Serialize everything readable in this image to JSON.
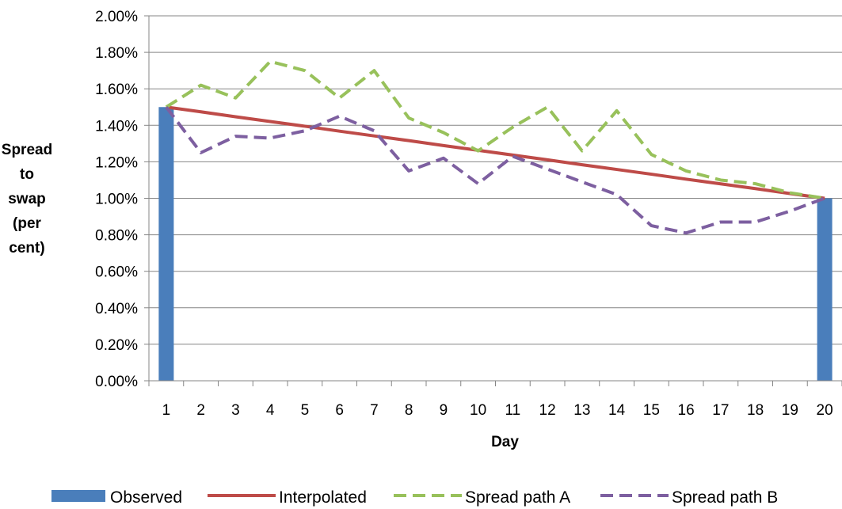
{
  "chart_data": {
    "type": "line",
    "title": "",
    "xlabel": "Day",
    "ylabel": [
      "Spread",
      "to",
      "swap",
      "(per",
      "cent)"
    ],
    "x": [
      1,
      2,
      3,
      4,
      5,
      6,
      7,
      8,
      9,
      10,
      11,
      12,
      13,
      14,
      15,
      16,
      17,
      18,
      19,
      20
    ],
    "ylim": [
      0,
      0.02
    ],
    "y_tick_labels": [
      "0.00%",
      "0.20%",
      "0.40%",
      "0.60%",
      "0.80%",
      "1.00%",
      "1.20%",
      "1.40%",
      "1.60%",
      "1.80%",
      "2.00%"
    ],
    "grid": true,
    "legend_position": "bottom",
    "series": [
      {
        "name": "Observed",
        "type": "bar",
        "color": "#4a7ebb",
        "values": [
          0.015,
          null,
          null,
          null,
          null,
          null,
          null,
          null,
          null,
          null,
          null,
          null,
          null,
          null,
          null,
          null,
          null,
          null,
          null,
          0.01
        ]
      },
      {
        "name": "Interpolated",
        "type": "line",
        "style": "solid",
        "color": "#be4b48",
        "values": [
          0.015,
          0.01474,
          0.01447,
          0.01421,
          0.01395,
          0.01368,
          0.01342,
          0.01316,
          0.01289,
          0.01263,
          0.01237,
          0.01211,
          0.01184,
          0.01158,
          0.01132,
          0.01105,
          0.01079,
          0.01053,
          0.01026,
          0.01
        ]
      },
      {
        "name": "Spread path A",
        "type": "line",
        "style": "dashed",
        "color": "#98c15b",
        "values": [
          0.015,
          0.0162,
          0.0155,
          0.0175,
          0.017,
          0.0155,
          0.017,
          0.0144,
          0.0136,
          0.0126,
          0.0139,
          0.015,
          0.0126,
          0.0148,
          0.0124,
          0.0115,
          0.011,
          0.0108,
          0.0103,
          0.01
        ]
      },
      {
        "name": "Spread path B",
        "type": "line",
        "style": "dashed",
        "color": "#7d5fa0",
        "values": [
          0.015,
          0.0125,
          0.0134,
          0.0133,
          0.0137,
          0.0145,
          0.0137,
          0.0115,
          0.0122,
          0.0108,
          0.0123,
          0.0116,
          0.0109,
          0.0102,
          0.0085,
          0.0081,
          0.0087,
          0.0087,
          0.0093,
          0.01
        ]
      }
    ]
  }
}
